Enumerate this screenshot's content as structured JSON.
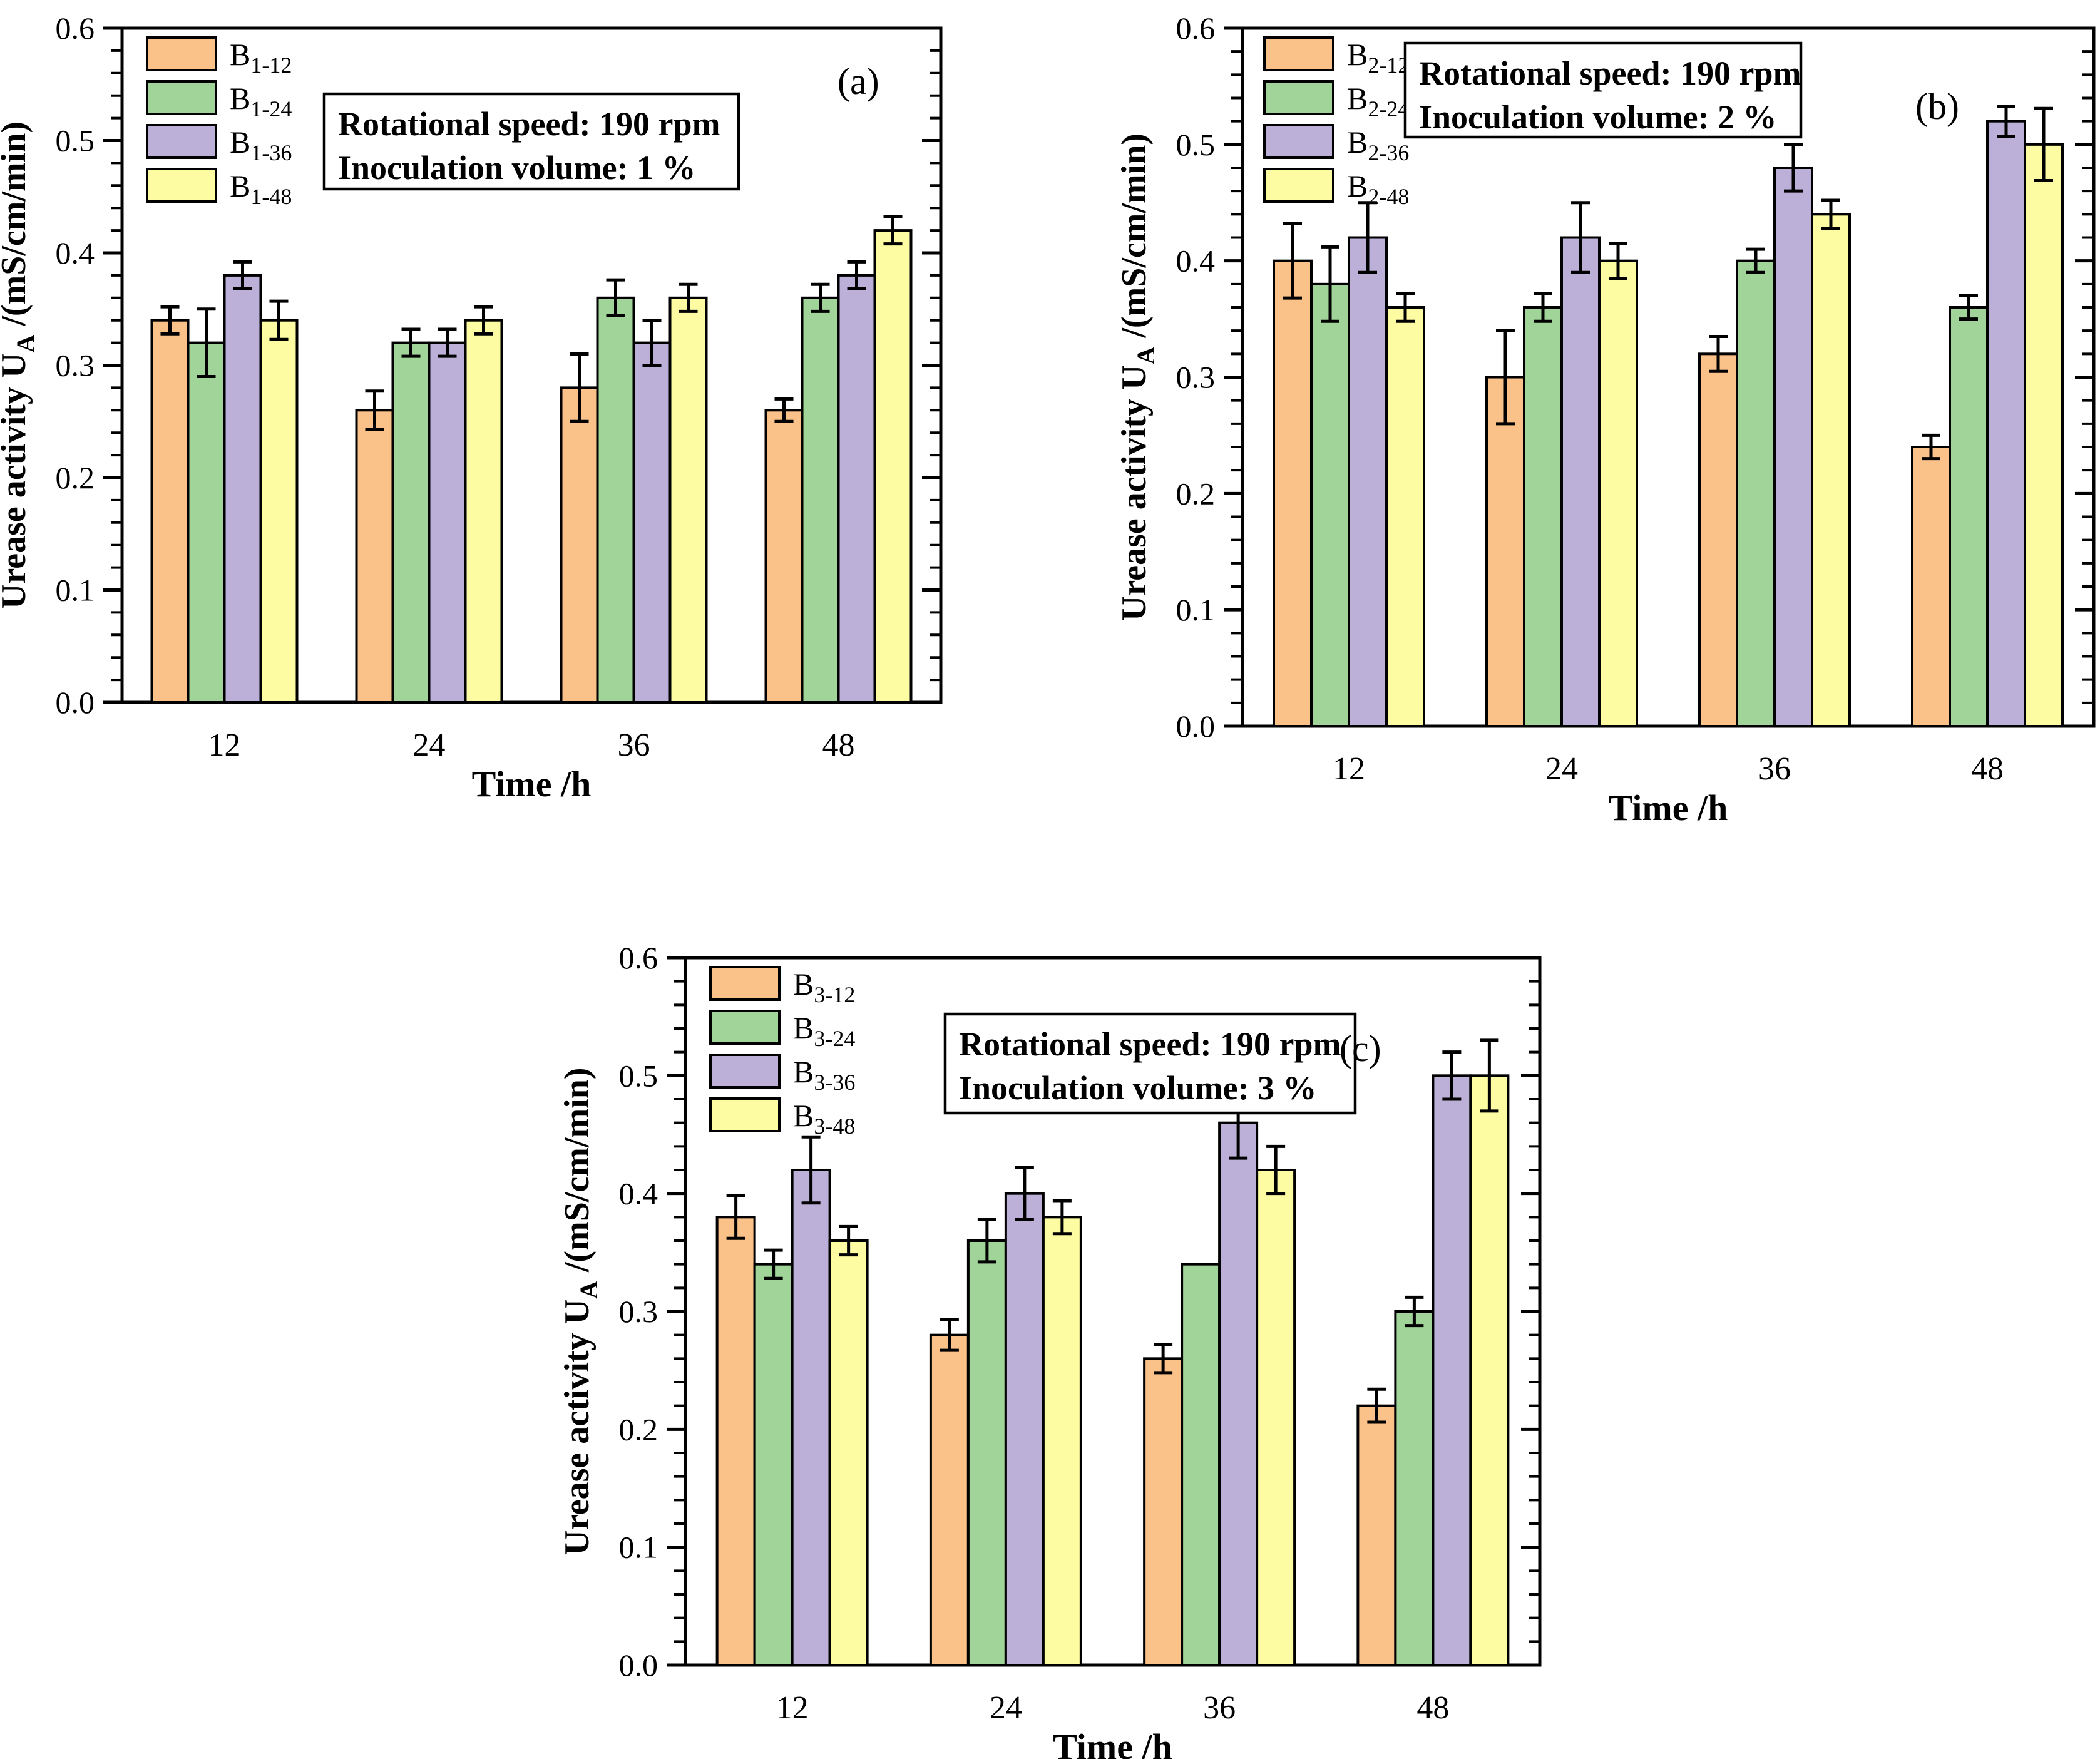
{
  "figure": {
    "background_color": "#ffffff",
    "text_color": "#000000",
    "bar_outline_color": "#000000"
  },
  "chart_data": [
    {
      "id": "a",
      "type": "bar",
      "panel_label": "(a)",
      "info_box_lines": [
        "Rotational speed: 190 rpm",
        "Inoculation volume: 1 %"
      ],
      "xlabel": "Time /h",
      "ylabel": {
        "prefix": "Urease activity U",
        "sub": "A",
        "suffix": " /(mS/cm/min)"
      },
      "categories": [
        "12",
        "24",
        "36",
        "48"
      ],
      "ylim": [
        0.0,
        0.6
      ],
      "y_tick_labels": [
        "0.0",
        "0.1",
        "0.2",
        "0.3",
        "0.4",
        "0.5",
        "0.6"
      ],
      "y_minor_step": 0.02,
      "grid": false,
      "legend_position": "top-left-inside",
      "series": [
        {
          "name": "B1-12",
          "label_base": "B",
          "label_sub": "1-12",
          "color": "#FAC189",
          "values": [
            0.34,
            0.26,
            0.28,
            0.26
          ],
          "errors": [
            0.012,
            0.017,
            0.03,
            0.01
          ]
        },
        {
          "name": "B1-24",
          "label_base": "B",
          "label_sub": "1-24",
          "color": "#A0D498",
          "values": [
            0.32,
            0.32,
            0.36,
            0.36
          ],
          "errors": [
            0.03,
            0.012,
            0.016,
            0.012
          ]
        },
        {
          "name": "B1-36",
          "label_base": "B",
          "label_sub": "1-36",
          "color": "#BDB0D8",
          "values": [
            0.38,
            0.32,
            0.32,
            0.38
          ],
          "errors": [
            0.012,
            0.012,
            0.02,
            0.012
          ]
        },
        {
          "name": "B1-48",
          "label_base": "B",
          "label_sub": "1-48",
          "color": "#FDFCA3",
          "values": [
            0.34,
            0.34,
            0.36,
            0.42
          ],
          "errors": [
            0.017,
            0.012,
            0.012,
            0.012
          ]
        }
      ]
    },
    {
      "id": "b",
      "type": "bar",
      "panel_label": "(b)",
      "info_box_lines": [
        "Rotational speed: 190 rpm",
        "Inoculation volume: 2 %"
      ],
      "xlabel": "Time /h",
      "ylabel": {
        "prefix": "Urease activity U",
        "sub": "A",
        "suffix": " /(mS/cm/min)"
      },
      "categories": [
        "12",
        "24",
        "36",
        "48"
      ],
      "ylim": [
        0.0,
        0.6
      ],
      "y_tick_labels": [
        "0.0",
        "0.1",
        "0.2",
        "0.3",
        "0.4",
        "0.5",
        "0.6"
      ],
      "y_minor_step": 0.02,
      "grid": false,
      "legend_position": "top-left-inside",
      "series": [
        {
          "name": "B2-12",
          "label_base": "B",
          "label_sub": "2-12",
          "color": "#FAC189",
          "values": [
            0.4,
            0.3,
            0.32,
            0.24
          ],
          "errors": [
            0.032,
            0.04,
            0.015,
            0.01
          ]
        },
        {
          "name": "B2-24",
          "label_base": "B",
          "label_sub": "2-24",
          "color": "#A0D498",
          "values": [
            0.38,
            0.36,
            0.4,
            0.36
          ],
          "errors": [
            0.032,
            0.012,
            0.01,
            0.01
          ]
        },
        {
          "name": "B2-36",
          "label_base": "B",
          "label_sub": "2-36",
          "color": "#BDB0D8",
          "values": [
            0.42,
            0.42,
            0.48,
            0.52
          ],
          "errors": [
            0.03,
            0.03,
            0.02,
            0.013
          ]
        },
        {
          "name": "B2-48",
          "label_base": "B",
          "label_sub": "2-48",
          "color": "#FDFCA3",
          "values": [
            0.36,
            0.4,
            0.44,
            0.5
          ],
          "errors": [
            0.012,
            0.015,
            0.012,
            0.031
          ]
        }
      ]
    },
    {
      "id": "c",
      "type": "bar",
      "panel_label": "(c)",
      "info_box_lines": [
        "Rotational speed: 190 rpm",
        "Inoculation volume: 3 %"
      ],
      "xlabel": "Time /h",
      "ylabel": {
        "prefix": "Urease activity U",
        "sub": "A",
        "suffix": " /(mS/cm/min)"
      },
      "categories": [
        "12",
        "24",
        "36",
        "48"
      ],
      "ylim": [
        0.0,
        0.6
      ],
      "y_tick_labels": [
        "0.0",
        "0.1",
        "0.2",
        "0.3",
        "0.4",
        "0.5",
        "0.6"
      ],
      "y_minor_step": 0.02,
      "grid": false,
      "legend_position": "top-left-inside",
      "series": [
        {
          "name": "B3-12",
          "label_base": "B",
          "label_sub": "3-12",
          "color": "#FAC189",
          "values": [
            0.38,
            0.28,
            0.26,
            0.22
          ],
          "errors": [
            0.018,
            0.013,
            0.012,
            0.014
          ]
        },
        {
          "name": "B3-24",
          "label_base": "B",
          "label_sub": "3-24",
          "color": "#A0D498",
          "values": [
            0.34,
            0.36,
            0.34,
            0.3
          ],
          "errors": [
            0.012,
            0.018,
            0.0,
            0.012
          ]
        },
        {
          "name": "B3-36",
          "label_base": "B",
          "label_sub": "3-36",
          "color": "#BDB0D8",
          "values": [
            0.42,
            0.4,
            0.46,
            0.5
          ],
          "errors": [
            0.028,
            0.022,
            0.03,
            0.02
          ]
        },
        {
          "name": "B3-48",
          "label_base": "B",
          "label_sub": "3-48",
          "color": "#FDFCA3",
          "values": [
            0.36,
            0.38,
            0.42,
            0.5
          ],
          "errors": [
            0.012,
            0.014,
            0.02,
            0.03
          ]
        }
      ]
    }
  ]
}
